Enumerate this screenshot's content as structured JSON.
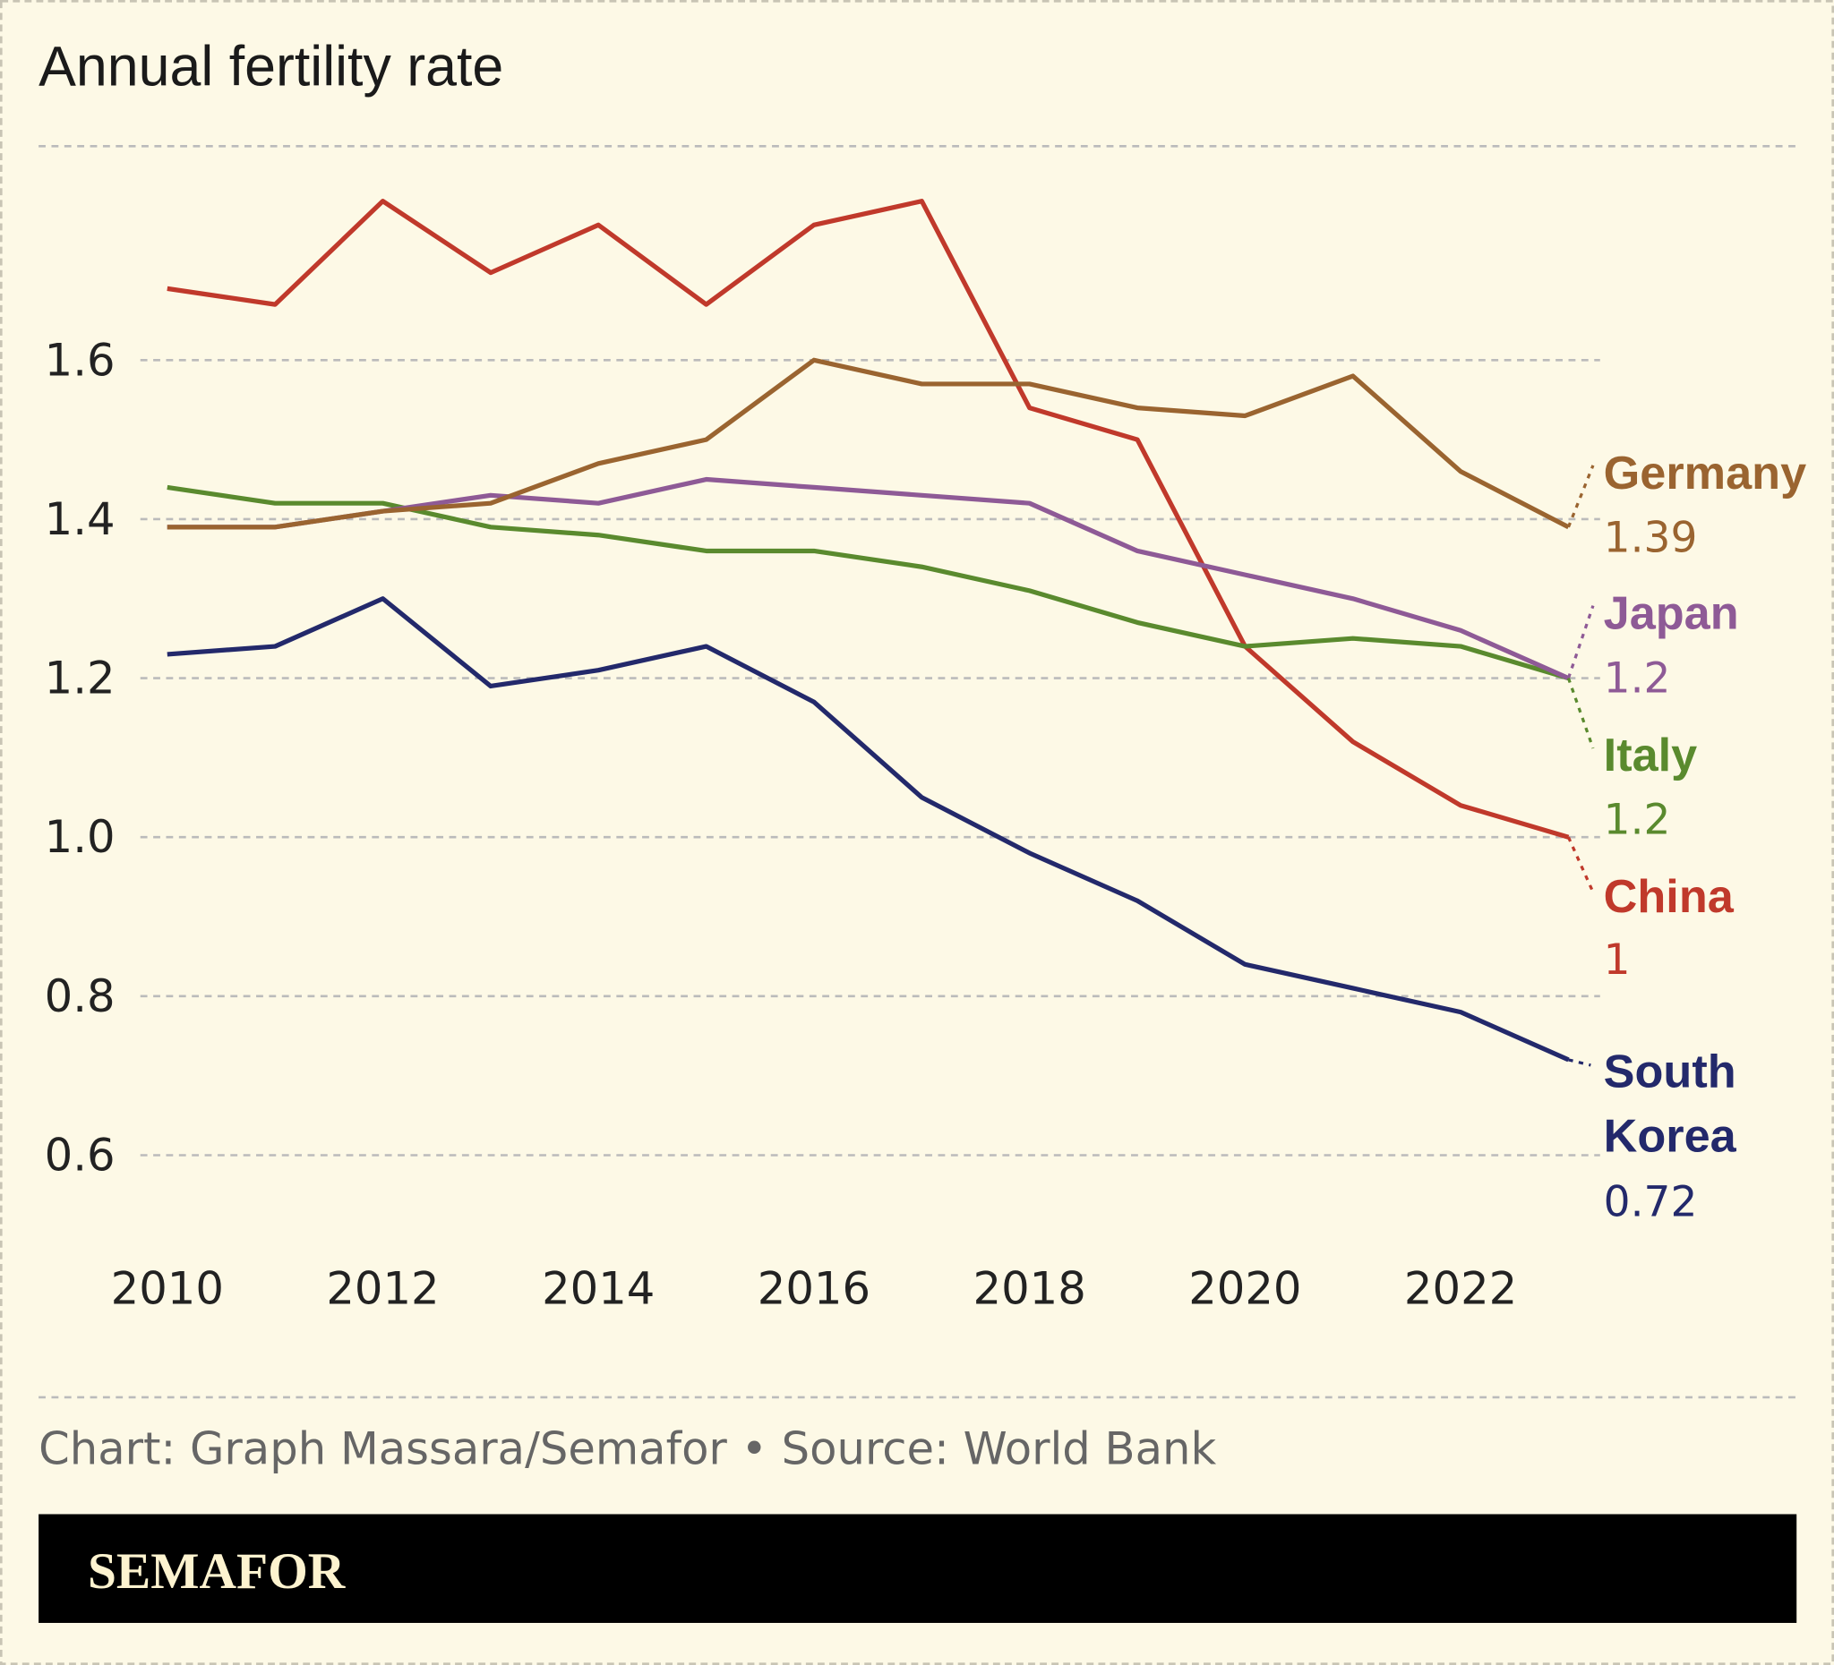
{
  "chart_data": {
    "type": "line",
    "title": "Annual fertility rate",
    "x": [
      2010,
      2011,
      2012,
      2013,
      2014,
      2015,
      2016,
      2017,
      2018,
      2019,
      2020,
      2021,
      2022,
      2023
    ],
    "xticks": [
      "2010",
      "2012",
      "2014",
      "2016",
      "2018",
      "2020",
      "2022"
    ],
    "yticks": [
      "0.6",
      "0.8",
      "1.0",
      "1.2",
      "1.4",
      "1.6"
    ],
    "ylim": [
      0.5,
      1.87
    ],
    "xlim": [
      2010,
      2023
    ],
    "grid": true,
    "series": [
      {
        "name": "Germany",
        "end_label": "1.39",
        "color": "#9a6430",
        "values": [
          1.39,
          1.39,
          1.41,
          1.42,
          1.47,
          1.5,
          1.6,
          1.57,
          1.57,
          1.54,
          1.53,
          1.58,
          1.46,
          1.39
        ]
      },
      {
        "name": "Japan",
        "end_label": "1.2",
        "color": "#8e5a96",
        "values": [
          1.39,
          1.39,
          1.41,
          1.43,
          1.42,
          1.45,
          1.44,
          1.43,
          1.42,
          1.36,
          1.33,
          1.3,
          1.26,
          1.2
        ]
      },
      {
        "name": "Italy",
        "end_label": "1.2",
        "color": "#5a8a2e",
        "values": [
          1.44,
          1.42,
          1.42,
          1.39,
          1.38,
          1.36,
          1.36,
          1.34,
          1.31,
          1.27,
          1.24,
          1.25,
          1.24,
          1.2
        ]
      },
      {
        "name": "China",
        "end_label": "1",
        "color": "#c0392b",
        "values": [
          1.69,
          1.67,
          1.8,
          1.71,
          1.77,
          1.67,
          1.77,
          1.8,
          1.54,
          1.5,
          1.24,
          1.12,
          1.04,
          1.0
        ]
      },
      {
        "name": "South Korea",
        "name_lines": [
          "South",
          "Korea"
        ],
        "end_label": "0.72",
        "color": "#23296b",
        "values": [
          1.23,
          1.24,
          1.3,
          1.19,
          1.21,
          1.24,
          1.17,
          1.05,
          0.98,
          0.92,
          0.84,
          0.81,
          0.78,
          0.72
        ]
      }
    ]
  },
  "footer": {
    "credit": "Chart: Graph Massara/Semafor • Source: World Bank"
  },
  "brand": {
    "logo": "SEMAFOR",
    "bar_color": "#000000",
    "logo_color": "#fdf3cf"
  },
  "colors": {
    "background": "#fdf9e6"
  }
}
